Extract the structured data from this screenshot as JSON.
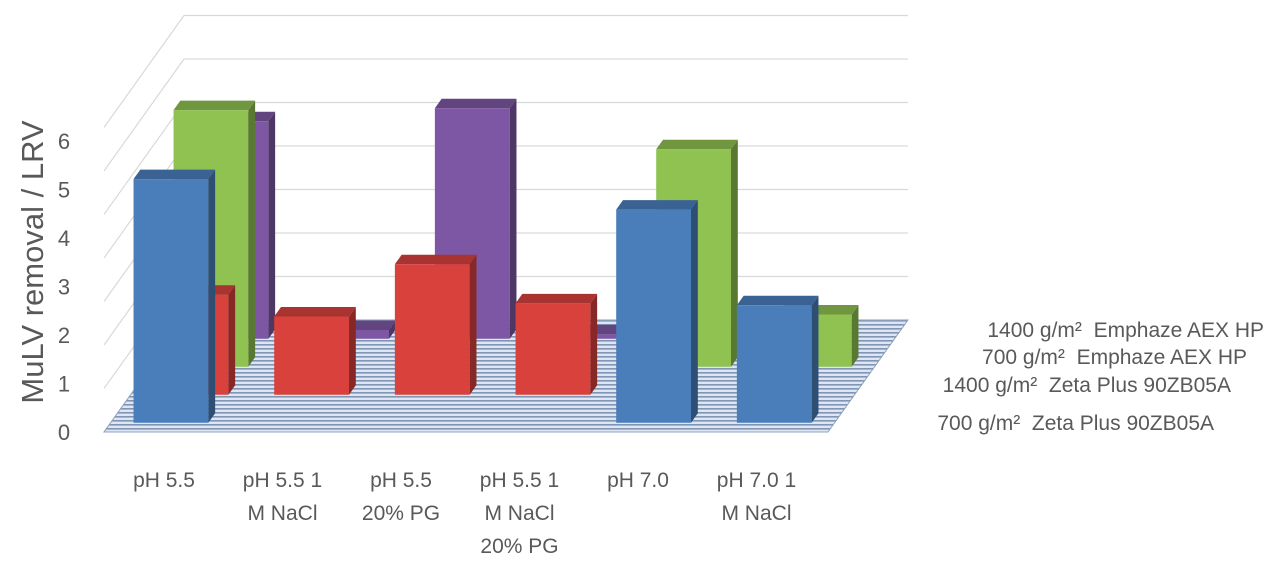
{
  "chart_data": {
    "type": "bar",
    "variant": "3d-column",
    "ylabel": "MuLV removal / LRV",
    "ylim": [
      0,
      7
    ],
    "yticks": [
      "0",
      "1",
      "2",
      "3",
      "4",
      "5",
      "6"
    ],
    "grid": true,
    "categories": [
      [
        "pH 5.5"
      ],
      [
        "pH 5.5 1",
        "M NaCl"
      ],
      [
        "pH 5.5",
        "20% PG"
      ],
      [
        "pH 5.5 1",
        "M NaCl",
        "20% PG"
      ],
      [
        "pH 7.0"
      ],
      [
        "pH 7.0 1",
        "M NaCl"
      ]
    ],
    "series": [
      {
        "name": "700 g/m²  Zeta Plus 90ZB05A",
        "color": "#4a7ebb",
        "values": [
          5.6,
          0,
          0,
          0,
          4.9,
          2.7
        ]
      },
      {
        "name": "1400 g/m²  Zeta Plus 90ZB05A",
        "color": "#d9413d",
        "values": [
          2.3,
          1.8,
          3.0,
          2.1,
          0,
          0
        ]
      },
      {
        "name": "700 g/m²  Emphaze AEX HP",
        "color": "#8fc251",
        "values": [
          5.9,
          0,
          0,
          0,
          5.0,
          1.2
        ]
      },
      {
        "name": "1400 g/m²  Emphaze AEX HP",
        "color": "#7d57a3",
        "values": [
          5.0,
          0.2,
          5.3,
          0.1,
          0,
          0
        ]
      }
    ],
    "legend": {
      "placement": "right",
      "entries": [
        "1400 g/m²  Emphaze AEX HP",
        "700 g/m²  Emphaze AEX HP",
        "1400 g/m²  Zeta Plus 90ZB05A",
        "700 g/m²  Zeta Plus 90ZB05A"
      ]
    }
  }
}
